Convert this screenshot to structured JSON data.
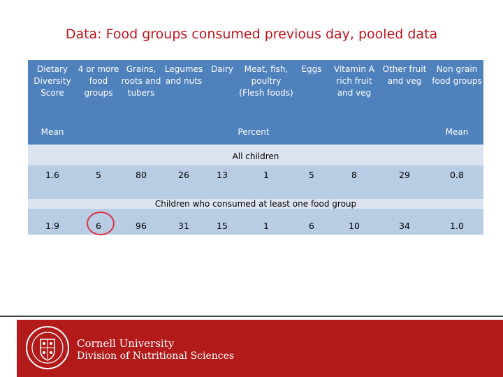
{
  "title": "Data: Food groups consumed previous day, pooled data",
  "table": {
    "columns": [
      "Dietary Diversity Score",
      "4 or more food groups",
      "Grains, roots and tubers",
      "Legumes and nuts",
      "Dairy",
      "Meat, fish, poultry (Flesh foods)",
      "Eggs",
      "Vitamin A rich fruit and veg",
      "Other fruit and veg",
      "Non grain food groups"
    ],
    "units": {
      "left": "Mean",
      "middle": "Percent",
      "right": "Mean"
    },
    "sections": [
      {
        "label": "All children",
        "values": [
          "1.6",
          "5",
          "80",
          "26",
          "13",
          "1",
          "5",
          "8",
          "29",
          "0.8"
        ]
      },
      {
        "label": "Children who consumed at least one food group",
        "values": [
          "1.9",
          "6",
          "96",
          "31",
          "15",
          "1",
          "6",
          "10",
          "34",
          "1.0"
        ]
      }
    ]
  },
  "footer": {
    "line1": "Cornell University",
    "line2": "Division of Nutritional Sciences"
  },
  "colors": {
    "title": "#c0141c",
    "header_bg": "#4f81bd",
    "section_bg": "#dbe4f0",
    "row_bg": "#b8cce4",
    "footer_bg": "#b31b1b",
    "highlight": "#d9363e"
  }
}
